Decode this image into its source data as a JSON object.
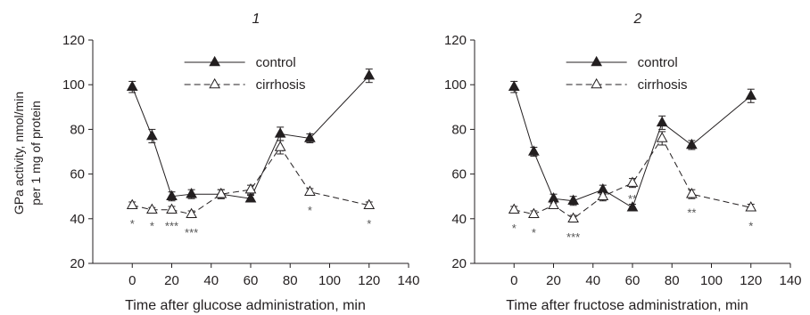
{
  "y_axis_label": [
    "GPa activity, nmol/min",
    "per 1 mg of protein"
  ],
  "colors": {
    "ink": "#231f20",
    "marker_open_fill": "#ffffff",
    "sig": "#555555"
  },
  "chart_data": [
    {
      "type": "line",
      "title": "1",
      "xlabel": "Time after glucose administration, min",
      "xlim": [
        -20,
        140
      ],
      "xticks": [
        0,
        20,
        40,
        60,
        80,
        100,
        120,
        140
      ],
      "ylim": [
        20,
        120
      ],
      "yticks": [
        20,
        40,
        60,
        80,
        100,
        120
      ],
      "legend_position": "top-center",
      "series": [
        {
          "name": "control",
          "marker": "filled-triangle",
          "line": "solid",
          "x": [
            0,
            10,
            20,
            30,
            45,
            60,
            75,
            90,
            120
          ],
          "y": [
            99,
            77,
            50,
            51,
            51,
            49,
            78,
            76,
            104
          ],
          "err": [
            2.5,
            3,
            2,
            2,
            2,
            1.5,
            3,
            2,
            3
          ]
        },
        {
          "name": "cirrhosis",
          "marker": "open-triangle",
          "line": "dashed",
          "x": [
            0,
            10,
            20,
            30,
            45,
            60,
            75,
            90,
            120
          ],
          "y": [
            46,
            44,
            44,
            42,
            51,
            53,
            72,
            52,
            46
          ],
          "err": [
            1.5,
            1,
            1.5,
            1.5,
            2,
            2,
            3,
            1.5,
            1.5
          ]
        }
      ],
      "significance": [
        {
          "x": 0,
          "y": 38,
          "label": "*"
        },
        {
          "x": 10,
          "y": 37,
          "label": "*"
        },
        {
          "x": 20,
          "y": 37,
          "label": "***"
        },
        {
          "x": 30,
          "y": 34,
          "label": "***"
        },
        {
          "x": 90,
          "y": 44,
          "label": "*"
        },
        {
          "x": 120,
          "y": 38,
          "label": "*"
        }
      ]
    },
    {
      "type": "line",
      "title": "2",
      "xlabel": "Time after fructose administration, min",
      "xlim": [
        -20,
        140
      ],
      "xticks": [
        0,
        20,
        40,
        60,
        80,
        100,
        120,
        140
      ],
      "ylim": [
        20,
        120
      ],
      "yticks": [
        20,
        40,
        60,
        80,
        100,
        120
      ],
      "legend_position": "top-center",
      "series": [
        {
          "name": "control",
          "marker": "filled-triangle",
          "line": "solid",
          "x": [
            0,
            10,
            20,
            30,
            45,
            60,
            75,
            90,
            120
          ],
          "y": [
            99,
            70,
            49,
            48,
            53,
            45,
            83,
            73,
            95
          ],
          "err": [
            2.5,
            2,
            2,
            2,
            2,
            1.5,
            3,
            2,
            3
          ]
        },
        {
          "name": "cirrhosis",
          "marker": "open-triangle",
          "line": "dashed",
          "x": [
            0,
            10,
            20,
            30,
            45,
            60,
            75,
            90,
            120
          ],
          "y": [
            44,
            42,
            46,
            40,
            50,
            56,
            76,
            51,
            45
          ],
          "err": [
            1.5,
            1.5,
            1.5,
            1.5,
            2,
            2,
            3,
            2,
            1.5
          ]
        }
      ],
      "significance": [
        {
          "x": 0,
          "y": 36,
          "label": "*"
        },
        {
          "x": 10,
          "y": 34,
          "label": "*"
        },
        {
          "x": 30,
          "y": 32,
          "label": "***"
        },
        {
          "x": 60,
          "y": 49,
          "label": "**"
        },
        {
          "x": 90,
          "y": 43,
          "label": "**"
        },
        {
          "x": 120,
          "y": 37,
          "label": "*"
        }
      ]
    }
  ]
}
